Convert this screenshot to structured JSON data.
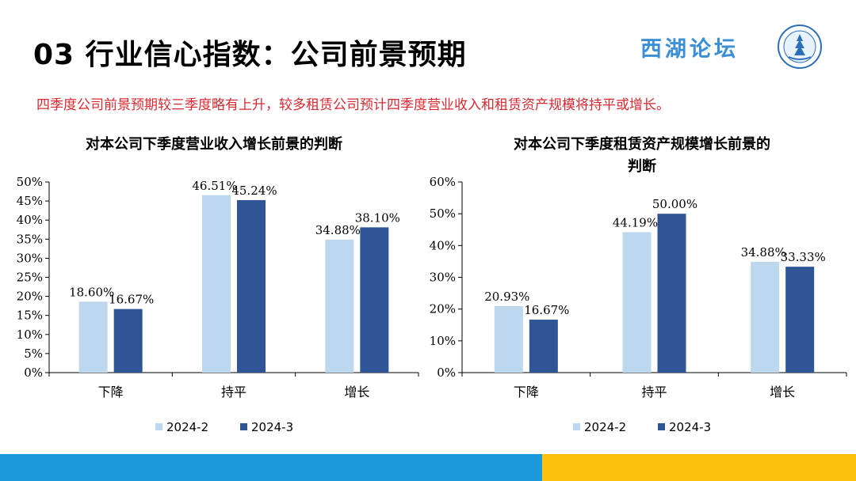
{
  "header": {
    "title": "03 行业信心指数：公司前景预期",
    "logo_text": "西湖论坛"
  },
  "subtitle": "四季度公司前景预期较三季度略有上升，较多租赁公司预计四季度营业收入和租赁资产规模将持平或增长。",
  "colors": {
    "series_2024_2": "#bdd7ee",
    "series_2024_3": "#2f5597",
    "subtitle": "#d9282f",
    "footer_blue": "#1a9ad9",
    "footer_yellow": "#fcc20b"
  },
  "chart_data": [
    {
      "type": "bar",
      "title_lines": [
        "对本公司下季度营业收入增长前景的判断"
      ],
      "categories": [
        "下降",
        "持平",
        "增长"
      ],
      "series": [
        {
          "name": "2024-2",
          "values": [
            18.6,
            46.51,
            34.88
          ]
        },
        {
          "name": "2024-3",
          "values": [
            16.67,
            45.24,
            38.1
          ]
        }
      ],
      "data_labels": [
        [
          "18.60%",
          "46.51%",
          "34.88%"
        ],
        [
          "16.67%",
          "45.24%",
          "38.10%"
        ]
      ],
      "ylim": [
        0,
        50
      ],
      "yticks": [
        0,
        5,
        10,
        15,
        20,
        25,
        30,
        35,
        40,
        45,
        50
      ],
      "ytick_labels": [
        "0%",
        "5%",
        "10%",
        "15%",
        "20%",
        "25%",
        "30%",
        "35%",
        "40%",
        "45%",
        "50%"
      ],
      "grid": false,
      "legend": "bottom"
    },
    {
      "type": "bar",
      "title_lines": [
        "对本公司下季度租赁资产规模增长前景的",
        "判断"
      ],
      "categories": [
        "下降",
        "持平",
        "增长"
      ],
      "series": [
        {
          "name": "2024-2",
          "values": [
            20.93,
            44.19,
            34.88
          ]
        },
        {
          "name": "2024-3",
          "values": [
            16.67,
            50.0,
            33.33
          ]
        }
      ],
      "data_labels": [
        [
          "20.93%",
          "44.19%",
          "34.88%"
        ],
        [
          "16.67%",
          "50.00%",
          "33.33%"
        ]
      ],
      "ylim": [
        0,
        60
      ],
      "yticks": [
        0,
        10,
        20,
        30,
        40,
        50,
        60
      ],
      "ytick_labels": [
        "0%",
        "10%",
        "20%",
        "30%",
        "40%",
        "50%",
        "60%"
      ],
      "grid": false,
      "legend": "bottom"
    }
  ]
}
